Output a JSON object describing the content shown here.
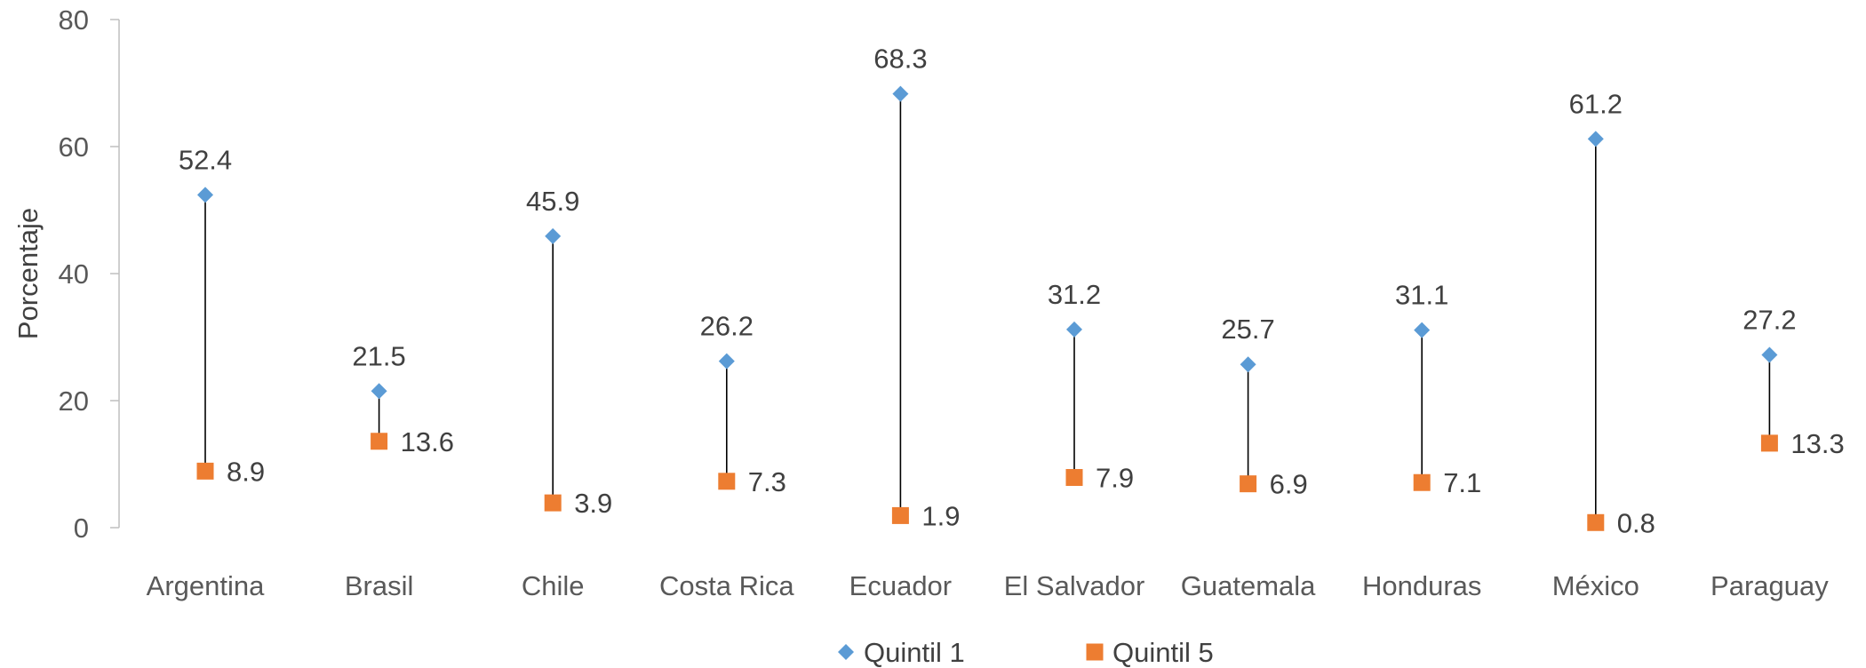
{
  "chart_data": {
    "type": "dot-range",
    "ylabel": "Porcentaje",
    "ylim": [
      0,
      80
    ],
    "yticks": [
      0,
      20,
      40,
      60,
      80
    ],
    "categories": [
      "Argentina",
      "Brasil",
      "Chile",
      "Costa Rica",
      "Ecuador",
      "El Salvador",
      "Guatemala",
      "Honduras",
      "México",
      "Paraguay"
    ],
    "series": [
      {
        "name": "Quintil 1",
        "marker": "diamond",
        "color": "#5b9bd5",
        "values": [
          52.4,
          21.5,
          45.9,
          26.2,
          68.3,
          31.2,
          25.7,
          31.1,
          61.2,
          27.2
        ]
      },
      {
        "name": "Quintil 5",
        "marker": "square",
        "color": "#ed7d31",
        "values": [
          8.9,
          13.6,
          3.9,
          7.3,
          1.9,
          7.9,
          6.9,
          7.1,
          0.8,
          13.3
        ]
      }
    ],
    "legend": "bottom",
    "grid": false
  }
}
